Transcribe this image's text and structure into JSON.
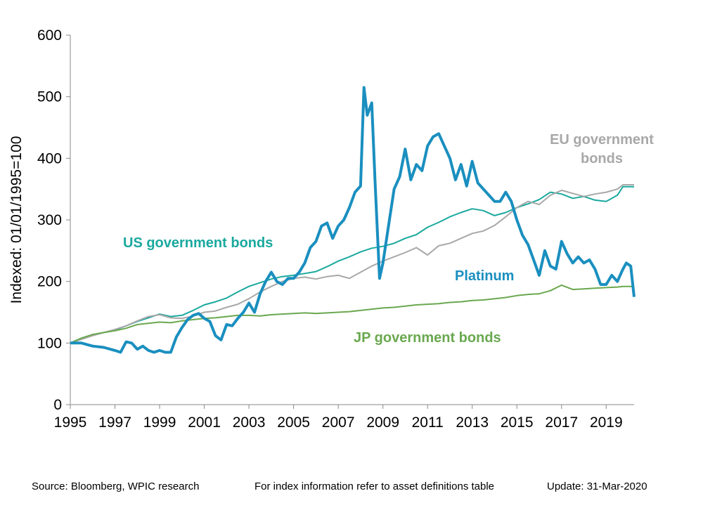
{
  "chart_data": {
    "type": "line",
    "title": "",
    "xlabel": "",
    "ylabel": "Indexed: 01/01/1995=100",
    "xlim": [
      1995,
      2020.25
    ],
    "ylim": [
      0,
      600
    ],
    "x_ticks": [
      "1995",
      "1997",
      "1999",
      "2001",
      "2003",
      "2005",
      "2007",
      "2009",
      "2011",
      "2013",
      "2015",
      "2017",
      "2019"
    ],
    "y_ticks": [
      "0",
      "100",
      "200",
      "300",
      "400",
      "500",
      "600"
    ],
    "grid": false,
    "legend": "none (series labelled directly on chart)",
    "series": [
      {
        "name": "US government bonds",
        "color": "#1aa99f",
        "x": [
          1995,
          1995.5,
          1996,
          1996.5,
          1997,
          1997.5,
          1998,
          1998.5,
          1999,
          1999.5,
          2000,
          2000.5,
          2001,
          2001.5,
          2002,
          2002.5,
          2003,
          2003.5,
          2004,
          2004.5,
          2005,
          2005.5,
          2006,
          2006.5,
          2007,
          2007.5,
          2008,
          2008.5,
          2009,
          2009.5,
          2010,
          2010.5,
          2011,
          2011.5,
          2012,
          2012.5,
          2013,
          2013.5,
          2014,
          2014.5,
          2015,
          2015.5,
          2016,
          2016.5,
          2017,
          2017.5,
          2018,
          2018.5,
          2019,
          2019.5,
          2019.75,
          2020.25
        ],
        "values": [
          100,
          108,
          113,
          117,
          121,
          128,
          135,
          141,
          147,
          143,
          145,
          153,
          162,
          167,
          173,
          183,
          192,
          198,
          204,
          208,
          210,
          213,
          216,
          224,
          233,
          240,
          248,
          254,
          257,
          262,
          270,
          276,
          288,
          296,
          305,
          312,
          318,
          315,
          307,
          312,
          320,
          326,
          333,
          345,
          342,
          335,
          338,
          332,
          330,
          340,
          354,
          354
        ]
      },
      {
        "name": "EU government bonds",
        "color": "#a8a8a8",
        "x": [
          1995,
          1995.5,
          1996,
          1996.5,
          1997,
          1997.5,
          1998,
          1998.5,
          1999,
          1999.5,
          2000,
          2000.5,
          2001,
          2001.5,
          2002,
          2002.5,
          2003,
          2003.5,
          2004,
          2004.5,
          2005,
          2005.5,
          2006,
          2006.5,
          2007,
          2007.5,
          2008,
          2008.5,
          2009,
          2009.5,
          2010,
          2010.5,
          2011,
          2011.5,
          2012,
          2012.5,
          2013,
          2013.5,
          2014,
          2014.5,
          2015,
          2015.5,
          2016,
          2016.5,
          2017,
          2017.5,
          2018,
          2018.5,
          2019,
          2019.5,
          2019.75,
          2020.25
        ],
        "values": [
          100,
          106,
          112,
          117,
          122,
          128,
          136,
          143,
          146,
          141,
          140,
          144,
          150,
          152,
          158,
          163,
          172,
          183,
          192,
          200,
          205,
          207,
          204,
          208,
          210,
          205,
          215,
          225,
          233,
          240,
          247,
          255,
          243,
          258,
          262,
          270,
          278,
          282,
          291,
          305,
          320,
          330,
          325,
          340,
          348,
          343,
          338,
          342,
          345,
          350,
          357,
          357
        ]
      },
      {
        "name": "JP government bonds",
        "color": "#6aa84f",
        "x": [
          1995,
          1995.5,
          1996,
          1996.5,
          1997,
          1997.5,
          1998,
          1998.5,
          1999,
          1999.5,
          2000,
          2000.5,
          2001,
          2001.5,
          2002,
          2002.5,
          2003,
          2003.5,
          2004,
          2004.5,
          2005,
          2005.5,
          2006,
          2006.5,
          2007,
          2007.5,
          2008,
          2008.5,
          2009,
          2009.5,
          2010,
          2010.5,
          2011,
          2011.5,
          2012,
          2012.5,
          2013,
          2013.5,
          2014,
          2014.5,
          2015,
          2015.5,
          2016,
          2016.5,
          2017,
          2017.5,
          2018,
          2018.5,
          2019,
          2019.5,
          2019.75,
          2020.25
        ],
        "values": [
          100,
          108,
          114,
          117,
          120,
          124,
          130,
          132,
          134,
          133,
          136,
          138,
          140,
          141,
          143,
          145,
          145,
          144,
          146,
          147,
          148,
          149,
          148,
          149,
          150,
          151,
          153,
          155,
          157,
          158,
          160,
          162,
          163,
          164,
          166,
          167,
          169,
          170,
          172,
          174,
          177,
          179,
          180,
          185,
          194,
          187,
          188,
          189,
          190,
          191,
          192,
          192
        ]
      },
      {
        "name": "Platinum",
        "color": "#1a8fbf",
        "x": [
          1995,
          1995.5,
          1996,
          1996.5,
          1997,
          1997.25,
          1997.5,
          1997.75,
          1998,
          1998.25,
          1998.5,
          1998.75,
          1999,
          1999.25,
          1999.5,
          1999.75,
          2000,
          2000.25,
          2000.5,
          2000.75,
          2001,
          2001.25,
          2001.5,
          2001.75,
          2002,
          2002.25,
          2002.5,
          2002.75,
          2003,
          2003.25,
          2003.5,
          2003.75,
          2004,
          2004.25,
          2004.5,
          2004.75,
          2005,
          2005.25,
          2005.5,
          2005.75,
          2006,
          2006.25,
          2006.5,
          2006.75,
          2007,
          2007.25,
          2007.5,
          2007.75,
          2008,
          2008.15,
          2008.3,
          2008.5,
          2008.65,
          2008.85,
          2009,
          2009.25,
          2009.5,
          2009.75,
          2010,
          2010.25,
          2010.5,
          2010.75,
          2011,
          2011.25,
          2011.5,
          2011.75,
          2012,
          2012.25,
          2012.5,
          2012.75,
          2013,
          2013.25,
          2013.5,
          2013.75,
          2014,
          2014.25,
          2014.5,
          2014.75,
          2015,
          2015.25,
          2015.5,
          2015.75,
          2016,
          2016.25,
          2016.5,
          2016.75,
          2017,
          2017.25,
          2017.5,
          2017.75,
          2018,
          2018.25,
          2018.5,
          2018.75,
          2019,
          2019.25,
          2019.5,
          2019.75,
          2019.9,
          2020.1,
          2020.25
        ],
        "values": [
          100,
          100,
          95,
          93,
          88,
          85,
          102,
          100,
          90,
          95,
          88,
          85,
          88,
          85,
          85,
          110,
          125,
          138,
          145,
          148,
          140,
          135,
          112,
          105,
          130,
          128,
          140,
          150,
          165,
          150,
          180,
          200,
          215,
          200,
          195,
          205,
          205,
          215,
          230,
          255,
          265,
          290,
          295,
          270,
          290,
          300,
          320,
          345,
          355,
          515,
          470,
          490,
          360,
          205,
          230,
          290,
          350,
          370,
          415,
          365,
          390,
          380,
          420,
          435,
          440,
          420,
          400,
          365,
          390,
          355,
          395,
          360,
          350,
          340,
          330,
          330,
          345,
          330,
          300,
          275,
          260,
          235,
          210,
          250,
          225,
          220,
          265,
          245,
          230,
          240,
          230,
          235,
          220,
          195,
          195,
          210,
          200,
          220,
          230,
          225,
          175
        ]
      }
    ],
    "annotations": {
      "us": "US government bonds",
      "eu_line1": "EU government",
      "eu_line2": "bonds",
      "jp": "JP government bonds",
      "platinum": "Platinum"
    }
  },
  "footer": {
    "source": "Source: Bloomberg, WPIC research",
    "note": "For index information refer to asset definitions table",
    "update": "Update: 31-Mar-2020"
  }
}
